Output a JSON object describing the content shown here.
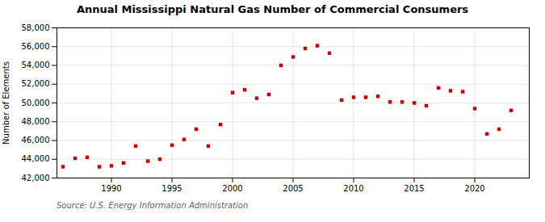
{
  "chart_data": {
    "type": "scatter",
    "title": "Annual Mississippi Natural Gas Number of Commercial Consumers",
    "ylabel": "Number of Elements",
    "caption": "Source: U.S. Energy Information Administration",
    "x": [
      1986,
      1987,
      1988,
      1989,
      1990,
      1991,
      1992,
      1993,
      1994,
      1995,
      1996,
      1997,
      1998,
      1999,
      2000,
      2001,
      2002,
      2003,
      2004,
      2005,
      2006,
      2007,
      2008,
      2009,
      2010,
      2011,
      2012,
      2013,
      2014,
      2015,
      2016,
      2017,
      2018,
      2019,
      2020,
      2021,
      2022,
      2023
    ],
    "values": [
      43200,
      44100,
      44200,
      43200,
      43300,
      43600,
      45400,
      43800,
      44000,
      45500,
      46100,
      47200,
      45400,
      47700,
      51100,
      51400,
      50500,
      50900,
      54000,
      54900,
      55800,
      56100,
      55300,
      50300,
      50600,
      50600,
      50700,
      50100,
      50100,
      50000,
      49700,
      51600,
      51300,
      51200,
      49400,
      46700,
      47200,
      49200
    ],
    "color": "#cc0000",
    "marker": "square",
    "xlim": [
      1985.5,
      2024.5
    ],
    "xticks": [
      1990,
      1995,
      2000,
      2005,
      2010,
      2015,
      2020
    ],
    "ylim": [
      42000,
      58000
    ],
    "yticks": [
      {
        "value": 42000,
        "label": "42,000"
      },
      {
        "value": 44000,
        "label": "44,000"
      },
      {
        "value": 46000,
        "label": "46,000"
      },
      {
        "value": 48000,
        "label": "48,000"
      },
      {
        "value": 50000,
        "label": "50,000"
      },
      {
        "value": 52000,
        "label": "52,000"
      },
      {
        "value": 54000,
        "label": "54,000"
      },
      {
        "value": 56000,
        "label": "56,000"
      },
      {
        "value": 58000,
        "label": "58,000"
      }
    ],
    "grid": true
  }
}
